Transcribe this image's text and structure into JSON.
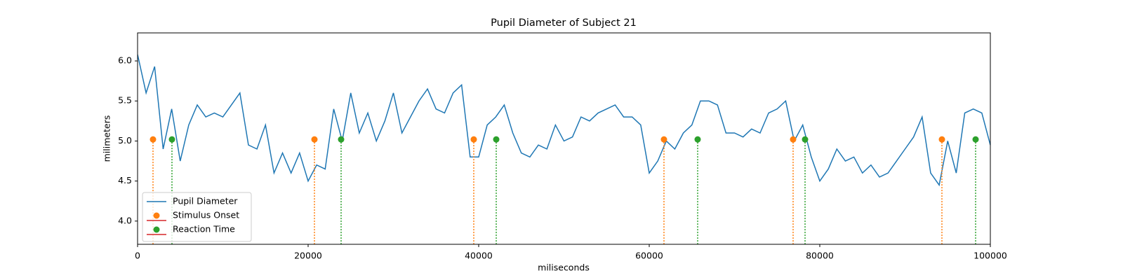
{
  "chart_data": {
    "type": "line",
    "title": "Pupil Diameter of Subject 21",
    "x_label": "miliseconds",
    "y_label": "milimeters",
    "xlim": [
      0,
      100000
    ],
    "ylim": [
      3.71,
      6.35
    ],
    "xticks": [
      0,
      20000,
      40000,
      60000,
      80000,
      100000
    ],
    "yticks": [
      {
        "value": 4.0,
        "label": "4.0"
      },
      {
        "value": 4.5,
        "label": "4.5"
      },
      {
        "value": 5.0,
        "label": "5.0"
      },
      {
        "value": 5.5,
        "label": "5.5"
      },
      {
        "value": 6.0,
        "label": "6.0"
      }
    ],
    "legend": "lower left",
    "series": [
      {
        "name": "Pupil Diameter",
        "type": "line",
        "color": "#1f77b4",
        "x": [
          0,
          1000,
          2000,
          3000,
          4000,
          5000,
          6000,
          7000,
          8000,
          9000,
          10000,
          11000,
          12000,
          13000,
          14000,
          15000,
          16000,
          17000,
          18000,
          19000,
          20000,
          21000,
          22000,
          23000,
          24000,
          25000,
          26000,
          27000,
          28000,
          29000,
          30000,
          31000,
          32000,
          33000,
          34000,
          35000,
          36000,
          37000,
          38000,
          39000,
          40000,
          41000,
          42000,
          43000,
          44000,
          45000,
          46000,
          47000,
          48000,
          49000,
          50000,
          51000,
          52000,
          53000,
          54000,
          55000,
          56000,
          57000,
          58000,
          59000,
          60000,
          61000,
          62000,
          63000,
          64000,
          65000,
          66000,
          67000,
          68000,
          69000,
          70000,
          71000,
          72000,
          73000,
          74000,
          75000,
          76000,
          77000,
          78000,
          79000,
          80000,
          81000,
          82000,
          83000,
          84000,
          85000,
          86000,
          87000,
          88000,
          89000,
          90000,
          91000,
          92000,
          93000,
          94000,
          95000,
          96000,
          97000,
          98000,
          99000,
          100000
        ],
        "values": [
          6.08,
          5.6,
          5.93,
          4.9,
          5.4,
          4.75,
          5.2,
          5.45,
          5.3,
          5.35,
          5.3,
          5.45,
          5.6,
          4.95,
          4.9,
          5.2,
          4.6,
          4.85,
          4.6,
          4.85,
          4.5,
          4.7,
          4.65,
          5.4,
          5.0,
          5.6,
          5.1,
          5.35,
          5.0,
          5.25,
          5.6,
          5.1,
          5.3,
          5.5,
          5.65,
          5.4,
          5.35,
          5.6,
          5.7,
          4.8,
          4.8,
          5.2,
          5.3,
          5.45,
          5.1,
          4.85,
          4.8,
          4.95,
          4.9,
          5.2,
          5.0,
          5.05,
          5.3,
          5.25,
          5.35,
          5.4,
          5.45,
          5.3,
          5.3,
          5.2,
          4.6,
          4.75,
          5.0,
          4.9,
          5.1,
          5.2,
          5.5,
          5.5,
          5.45,
          5.1,
          5.1,
          5.05,
          5.15,
          5.1,
          5.35,
          5.4,
          5.5,
          5.0,
          5.2,
          4.8,
          4.5,
          4.65,
          4.9,
          4.75,
          4.8,
          4.6,
          4.7,
          4.55,
          4.6,
          4.75,
          4.9,
          5.05,
          5.3,
          4.6,
          4.45,
          5.0,
          4.6,
          5.35,
          5.4,
          5.35,
          4.95
        ]
      },
      {
        "name": "Stimulus Onset",
        "type": "stem",
        "color": "#ff7f0e",
        "baseline_color": "#d62728",
        "x": [
          1811,
          20741,
          39424,
          61728,
          76872,
          94321
        ],
        "values": [
          5.02,
          5.02,
          5.02,
          5.02,
          5.02,
          5.02
        ]
      },
      {
        "name": "Reaction Time",
        "type": "stem",
        "color": "#2ca02c",
        "baseline_color": "#d62728",
        "x": [
          4033,
          23868,
          42058,
          65679,
          78272,
          98272
        ],
        "values": [
          5.02,
          5.02,
          5.02,
          5.02,
          5.02,
          5.02
        ]
      }
    ]
  }
}
